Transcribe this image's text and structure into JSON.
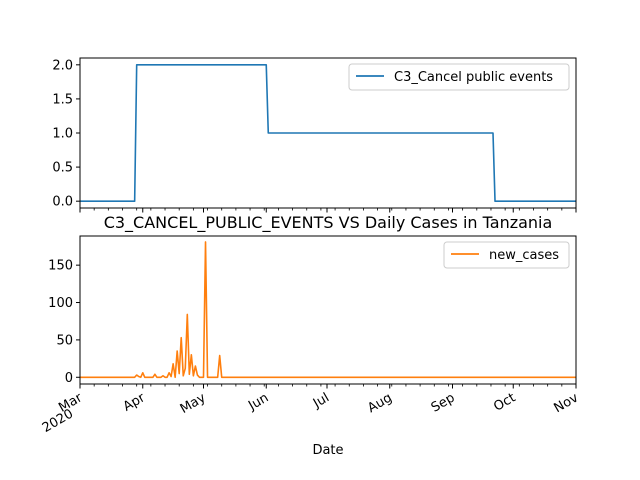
{
  "chart_data": [
    {
      "type": "line",
      "title": "",
      "xlabel": "",
      "ylabel": "",
      "ylim": [
        -0.1,
        2.1
      ],
      "yticks": [
        "0.0",
        "0.5",
        "1.0",
        "1.5",
        "2.0"
      ],
      "xlim": [
        "2020-03-01",
        "2020-11-01"
      ],
      "legend": "top-right",
      "grid": false,
      "series": [
        {
          "name": "C3_Cancel public events",
          "color": "#1f77b4",
          "x": [
            "2020-03-01",
            "2020-03-28",
            "2020-03-29",
            "2020-06-01",
            "2020-06-02",
            "2020-09-21",
            "2020-09-22",
            "2020-11-01"
          ],
          "values": [
            0,
            0,
            2,
            2,
            1,
            1,
            0,
            0
          ]
        }
      ]
    },
    {
      "type": "line",
      "title": "C3_CANCEL_PUBLIC_EVENTS VS Daily Cases in Tanzania",
      "xlabel": "Date",
      "ylabel": "",
      "ylim": [
        -9,
        189
      ],
      "yticks": [
        "0",
        "50",
        "100",
        "150"
      ],
      "xlim": [
        "2020-03-01",
        "2020-11-01"
      ],
      "xticks": [
        {
          "label": "Mar",
          "sub": "2020"
        },
        {
          "label": "Apr"
        },
        {
          "label": "May"
        },
        {
          "label": "Jun"
        },
        {
          "label": "Jul"
        },
        {
          "label": "Aug"
        },
        {
          "label": "Sep"
        },
        {
          "label": "Oct"
        },
        {
          "label": "Nov"
        }
      ],
      "legend": "top-right",
      "grid": false,
      "series": [
        {
          "name": "new_cases",
          "color": "#ff7f0e",
          "x": [
            "2020-03-01",
            "2020-03-28",
            "2020-03-29",
            "2020-03-30",
            "2020-03-31",
            "2020-04-01",
            "2020-04-02",
            "2020-04-03",
            "2020-04-06",
            "2020-04-07",
            "2020-04-08",
            "2020-04-10",
            "2020-04-11",
            "2020-04-12",
            "2020-04-13",
            "2020-04-14",
            "2020-04-15",
            "2020-04-16",
            "2020-04-17",
            "2020-04-18",
            "2020-04-19",
            "2020-04-20",
            "2020-04-21",
            "2020-04-22",
            "2020-04-23",
            "2020-04-24",
            "2020-04-25",
            "2020-04-26",
            "2020-04-27",
            "2020-04-28",
            "2020-04-29",
            "2020-04-30",
            "2020-05-01",
            "2020-05-02",
            "2020-05-03",
            "2020-05-04",
            "2020-05-05",
            "2020-05-07",
            "2020-05-08",
            "2020-05-09",
            "2020-05-10",
            "2020-11-01"
          ],
          "values": [
            0,
            0,
            3,
            1,
            0,
            6,
            0,
            0,
            0,
            4,
            0,
            0,
            2,
            0,
            0,
            6,
            1,
            18,
            0,
            35,
            5,
            53,
            2,
            12,
            84,
            4,
            30,
            2,
            15,
            3,
            0,
            0,
            0,
            181,
            0,
            0,
            0,
            0,
            0,
            29,
            0,
            0
          ]
        }
      ]
    }
  ]
}
